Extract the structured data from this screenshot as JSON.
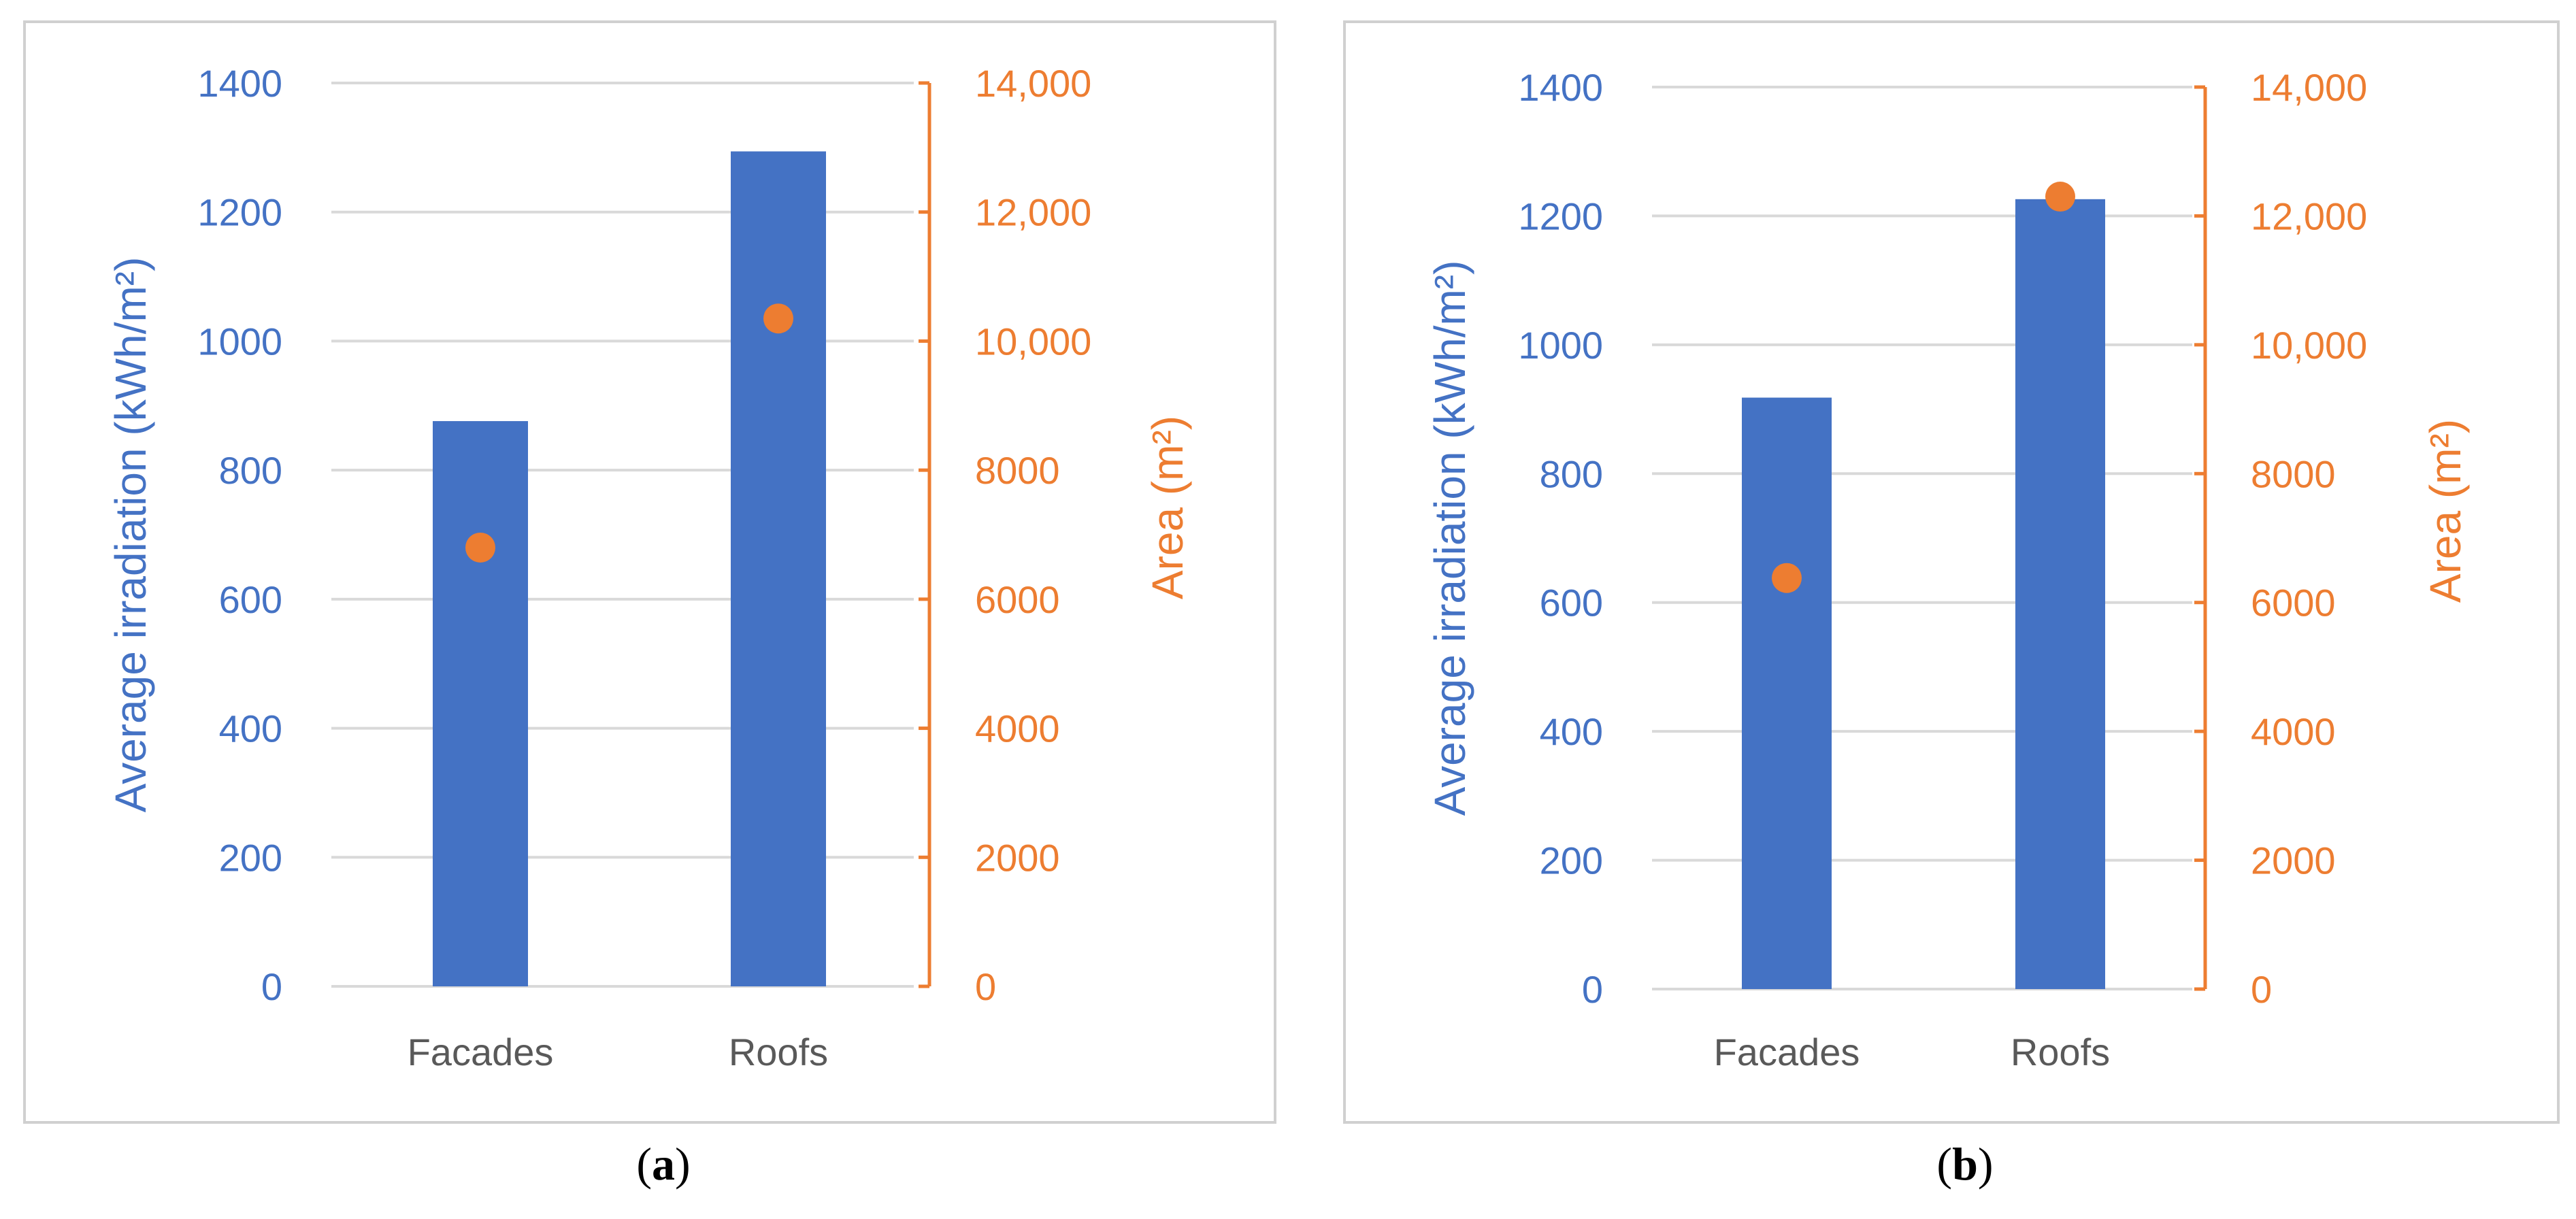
{
  "colors": {
    "bar": "#4472c4",
    "point": "#ed7d31",
    "grid": "#d9d9d9",
    "category_text": "#595959"
  },
  "chart_data": [
    {
      "type": "bar",
      "caption": "a",
      "categories": [
        "Facades",
        "Roofs"
      ],
      "series": [
        {
          "type": "bar",
          "axis": "left",
          "values": [
            876,
            1294
          ]
        },
        {
          "type": "scatter",
          "axis": "right",
          "values": [
            6800,
            10350
          ]
        }
      ],
      "ylabel_left": "Average irradiation (kWh/m²)",
      "ylabel_right": "Area (m²)",
      "ylim_left": [
        0,
        1400
      ],
      "ylim_right": [
        0,
        14000
      ],
      "yticks_left": [
        "0",
        "200",
        "400",
        "600",
        "800",
        "1000",
        "1200",
        "1400"
      ],
      "yticks_right": [
        "0",
        "2000",
        "4000",
        "6000",
        "8000",
        "10,000",
        "12,000",
        "14,000"
      ],
      "grid": true,
      "legend": "none"
    },
    {
      "type": "bar",
      "caption": "b",
      "categories": [
        "Facades",
        "Roofs"
      ],
      "series": [
        {
          "type": "bar",
          "axis": "left",
          "values": [
            918,
            1226
          ]
        },
        {
          "type": "scatter",
          "axis": "right",
          "values": [
            6380,
            12300
          ]
        }
      ],
      "ylabel_left": "Average irradiation (kWh/m²)",
      "ylabel_right": "Area (m²)",
      "ylim_left": [
        0,
        1400
      ],
      "ylim_right": [
        0,
        14000
      ],
      "yticks_left": [
        "0",
        "200",
        "400",
        "600",
        "800",
        "1000",
        "1200",
        "1400"
      ],
      "yticks_right": [
        "0",
        "2000",
        "4000",
        "6000",
        "8000",
        "10,000",
        "12,000",
        "14,000"
      ],
      "grid": true,
      "legend": "none"
    }
  ]
}
